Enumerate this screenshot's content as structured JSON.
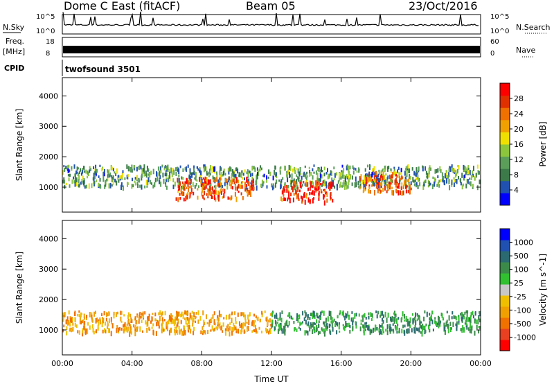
{
  "header": {
    "title": "Dome C East (fitACF)",
    "beam": "Beam 05",
    "date": "23/Oct/2016"
  },
  "strips": {
    "nsky": {
      "label": "N.Sky",
      "ticks": [
        "10^5",
        "10^0"
      ]
    },
    "nsearch": {
      "label": "N.Search",
      "ticks": [
        "10^5",
        "10^0"
      ]
    },
    "freq": {
      "label_top": "Freq.",
      "label_unit": "[MHz]",
      "ticks": [
        "18",
        "8"
      ]
    },
    "nave": {
      "label": "Nave",
      "ticks": [
        "60",
        "0"
      ]
    },
    "cpid": {
      "label": "CPID",
      "value": "twofsound 3501"
    }
  },
  "colors": {
    "power_scale": [
      "#0000ff",
      "#2050b0",
      "#3c7a4a",
      "#5a9e5a",
      "#8cc63c",
      "#f0e000",
      "#f0a000",
      "#f07000",
      "#e03000",
      "#ff0000"
    ],
    "velocity_scale": [
      "#ff0000",
      "#e84020",
      "#f07000",
      "#f0a000",
      "#f0c000",
      "#c8c8c8",
      "#30c030",
      "#3c8a4a",
      "#2a6a70",
      "#2050b0",
      "#0000ff"
    ]
  },
  "chart_data": [
    {
      "type": "heatmap",
      "name": "power",
      "xlabel": "",
      "ylabel": "Slant Range [km]",
      "x_range": [
        "00:00",
        "24:00"
      ],
      "ylim": [
        180,
        4600
      ],
      "y_ticks": [
        1000,
        2000,
        3000,
        4000
      ],
      "colorbar": {
        "label": "Power [dB]",
        "range": [
          0,
          32
        ],
        "ticks": [
          4,
          8,
          12,
          16,
          20,
          24,
          28
        ]
      },
      "features": [
        {
          "t_start": 0.0,
          "t_end": 24.0,
          "range_km": 1400,
          "value": 10,
          "note": "persistent scatter band"
        },
        {
          "t_start": 6.5,
          "t_end": 11.0,
          "range_km": 1000,
          "value": 26
        },
        {
          "t_start": 12.5,
          "t_end": 15.5,
          "range_km": 900,
          "value": 28
        },
        {
          "t_start": 17.0,
          "t_end": 20.0,
          "range_km": 1200,
          "value": 24
        }
      ]
    },
    {
      "type": "heatmap",
      "name": "velocity",
      "xlabel": "Time UT",
      "ylabel": "Slant Range [km]",
      "x_ticks": [
        "00:00",
        "04:00",
        "08:00",
        "12:00",
        "16:00",
        "20:00",
        "00:00"
      ],
      "ylim": [
        180,
        4600
      ],
      "y_ticks": [
        1000,
        2000,
        3000,
        4000
      ],
      "colorbar": {
        "label": "Velocity [m s^-1]",
        "ticks": [
          1000,
          500,
          100,
          25,
          -25,
          -100,
          -500,
          -1000
        ]
      },
      "features": [
        {
          "t_start": 0.0,
          "t_end": 12.0,
          "range_km": 1300,
          "value": -250
        },
        {
          "t_start": 12.0,
          "t_end": 24.0,
          "range_km": 1300,
          "value": 150
        }
      ]
    }
  ]
}
